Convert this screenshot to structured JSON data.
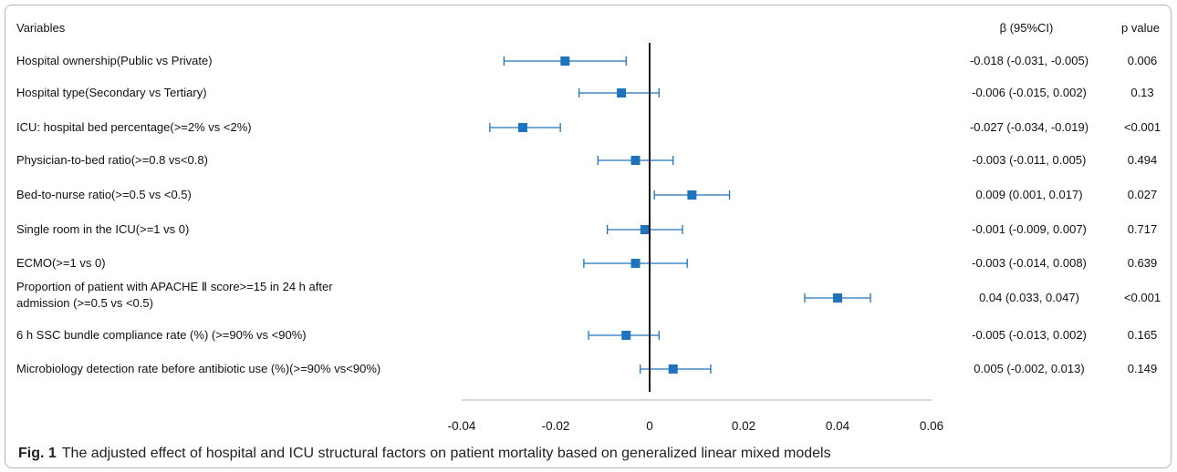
{
  "headers": {
    "variables": "Variables",
    "beta": "β (95%CI)",
    "p": "p value"
  },
  "caption": {
    "label": "Fig. 1",
    "text": "The adjusted effect of hospital and ICU structural factors on patient mortality based on generalized linear mixed models"
  },
  "colors": {
    "marker": "#1f73bd",
    "ci": "#1f73bd",
    "zero_line": "#000000",
    "axis": "#b0b0b0"
  },
  "chart_data": {
    "type": "forest",
    "xlim": [
      -0.04,
      0.06
    ],
    "xticks": [
      "-0.04",
      "-0.02",
      "0",
      "0.02",
      "0.04",
      "0.06"
    ],
    "xtick_values": [
      -0.04,
      -0.02,
      0,
      0.02,
      0.04,
      0.06
    ],
    "rows": [
      {
        "label": [
          "Hospital ownership(Public vs Private)"
        ],
        "beta": -0.018,
        "lo": -0.031,
        "hi": -0.005,
        "ci_text": "-0.018 (-0.031, -0.005)",
        "p": "0.006"
      },
      {
        "label": [
          "Hospital type(Secondary vs Tertiary)"
        ],
        "beta": -0.006,
        "lo": -0.015,
        "hi": 0.002,
        "ci_text": "-0.006 (-0.015, 0.002)",
        "p": "0.13"
      },
      {
        "label": [
          "ICU: hospital bed percentage(>=2% vs <2%)"
        ],
        "beta": -0.027,
        "lo": -0.034,
        "hi": -0.019,
        "ci_text": "-0.027 (-0.034, -0.019)",
        "p": "<0.001"
      },
      {
        "label": [
          "Physician-to-bed ratio(>=0.8 vs<0.8)"
        ],
        "beta": -0.003,
        "lo": -0.011,
        "hi": 0.005,
        "ci_text": "-0.003 (-0.011, 0.005)",
        "p": "0.494"
      },
      {
        "label": [
          "Bed-to-nurse ratio(>=0.5 vs <0.5)"
        ],
        "beta": 0.009,
        "lo": 0.001,
        "hi": 0.017,
        "ci_text": "0.009 (0.001, 0.017)",
        "p": "0.027"
      },
      {
        "label": [
          "Single room in the ICU(>=1 vs 0)"
        ],
        "beta": -0.001,
        "lo": -0.009,
        "hi": 0.007,
        "ci_text": "-0.001 (-0.009, 0.007)",
        "p": "0.717"
      },
      {
        "label": [
          "ECMO(>=1 vs 0)"
        ],
        "beta": -0.003,
        "lo": -0.014,
        "hi": 0.008,
        "ci_text": "-0.003 (-0.014, 0.008)",
        "p": "0.639"
      },
      {
        "label": [
          "Proportion of patient with APACHE Ⅱ score>=15 in 24 h after",
          "admission (>=0.5 vs <0.5)"
        ],
        "beta": 0.04,
        "lo": 0.033,
        "hi": 0.047,
        "ci_text": "0.04 (0.033, 0.047)",
        "p": "<0.001"
      },
      {
        "label": [
          "6 h SSC bundle compliance rate (%) (>=90% vs <90%)"
        ],
        "beta": -0.005,
        "lo": -0.013,
        "hi": 0.002,
        "ci_text": "-0.005 (-0.013, 0.002)",
        "p": "0.165"
      },
      {
        "label": [
          "Microbiology detection rate before antibiotic use (%)(>=90% vs<90%)"
        ],
        "beta": 0.005,
        "lo": -0.002,
        "hi": 0.013,
        "ci_text": "0.005 (-0.002, 0.013)",
        "p": "0.149"
      }
    ]
  }
}
